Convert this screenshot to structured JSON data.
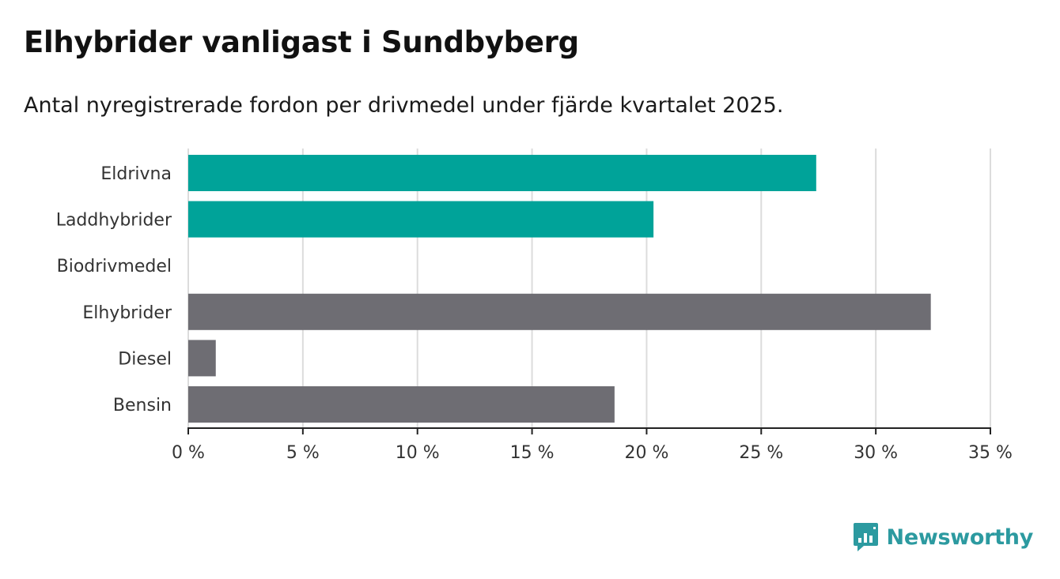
{
  "title": "Elhybrider vanligast i Sundbyberg",
  "subtitle": "Antal nyregistrerade fordon per drivmedel under fjärde kvartalet 2025.",
  "brand": {
    "name": "Newsworthy",
    "logo_icon": "bar-chart-speech-bubble-icon",
    "color": "#2c9aa0"
  },
  "chart_data": {
    "type": "bar",
    "orientation": "horizontal",
    "title": "Elhybrider vanligast i Sundbyberg",
    "subtitle": "Antal nyregistrerade fordon per drivmedel under fjärde kvartalet 2025.",
    "categories": [
      "Eldrivna",
      "Laddhybrider",
      "Biodrivmedel",
      "Elhybrider",
      "Diesel",
      "Bensin"
    ],
    "values": [
      27.4,
      20.3,
      0,
      32.4,
      1.2,
      18.6
    ],
    "colors": [
      "#00a399",
      "#00a399",
      "#00a399",
      "#6e6d73",
      "#6e6d73",
      "#6e6d73"
    ],
    "xlabel": "",
    "ylabel": "",
    "xlim": [
      0,
      35
    ],
    "xticks": [
      0,
      5,
      10,
      15,
      20,
      25,
      30,
      35
    ],
    "xtick_labels": [
      "0 %",
      "5 %",
      "10 %",
      "15 %",
      "20 %",
      "25 %",
      "30 %",
      "35 %"
    ],
    "unit": "%",
    "grid": true,
    "legend": "none"
  }
}
